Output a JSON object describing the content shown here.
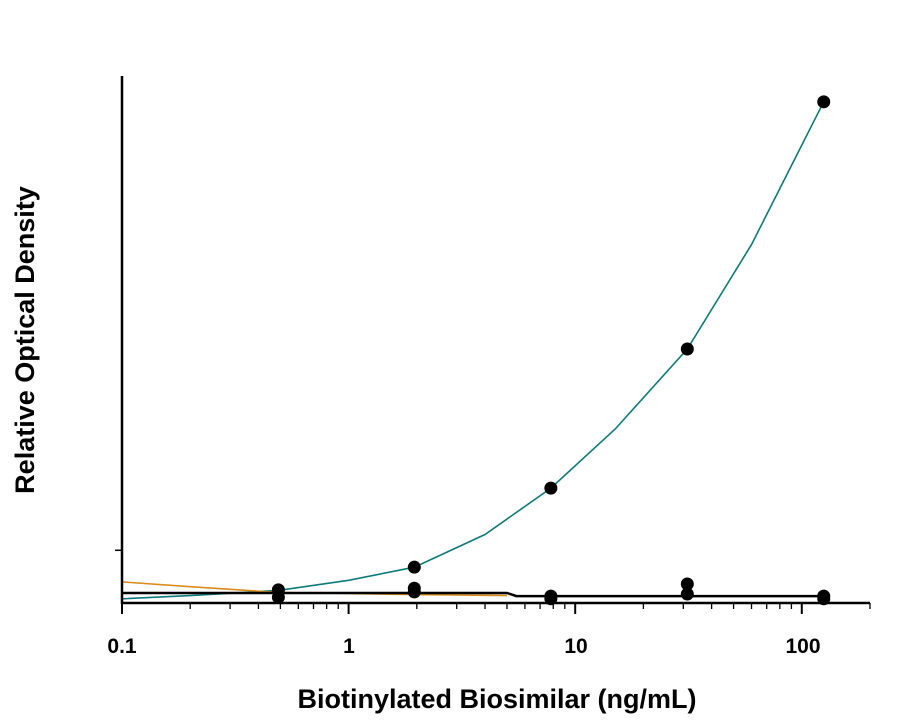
{
  "chart_data": {
    "type": "scatter",
    "title": "",
    "xlabel": "Biotinylated Biosimilar (ng/mL)",
    "ylabel": "Relative Optical Density",
    "x_scale": "log",
    "xlim": [
      0.1,
      200
    ],
    "ylim": [
      0,
      1
    ],
    "y_ticks": [
      0.1
    ],
    "x_ticks": [
      0.1,
      1,
      10,
      100
    ],
    "x_tick_labels": [
      "0.1",
      "1",
      "10",
      "100"
    ],
    "grid": false,
    "legend": "none",
    "colors": {
      "teal": "#0e7a7a",
      "orange": "#d98c1a",
      "black": "#000000",
      "points": "#000000"
    },
    "points": [
      {
        "x": 0.49,
        "y": 0.025
      },
      {
        "x": 0.49,
        "y": 0.011
      },
      {
        "x": 1.95,
        "y": 0.068
      },
      {
        "x": 1.95,
        "y": 0.028
      },
      {
        "x": 1.95,
        "y": 0.021
      },
      {
        "x": 7.81,
        "y": 0.218
      },
      {
        "x": 7.81,
        "y": 0.013
      },
      {
        "x": 7.81,
        "y": 0.008
      },
      {
        "x": 31.25,
        "y": 0.482
      },
      {
        "x": 31.25,
        "y": 0.036
      },
      {
        "x": 31.25,
        "y": 0.017
      },
      {
        "x": 125,
        "y": 0.951
      },
      {
        "x": 125,
        "y": 0.013
      },
      {
        "x": 125,
        "y": 0.008
      }
    ],
    "curves": [
      {
        "color": "teal",
        "x": [
          0.1,
          0.2,
          0.49,
          1,
          1.95,
          4,
          7.81,
          15,
          31.25,
          60,
          125
        ],
        "y": [
          0.008,
          0.014,
          0.024,
          0.043,
          0.068,
          0.13,
          0.218,
          0.33,
          0.482,
          0.68,
          0.951
        ]
      },
      {
        "color": "orange",
        "x": [
          0.1,
          0.2,
          0.49,
          1,
          2,
          5
        ],
        "y": [
          0.04,
          0.031,
          0.02,
          0.018,
          0.016,
          0.014
        ]
      },
      {
        "color": "black",
        "x": [
          0.1,
          1,
          5,
          5.5,
          125
        ],
        "y": [
          0.019,
          0.019,
          0.019,
          0.013,
          0.013
        ]
      }
    ]
  }
}
